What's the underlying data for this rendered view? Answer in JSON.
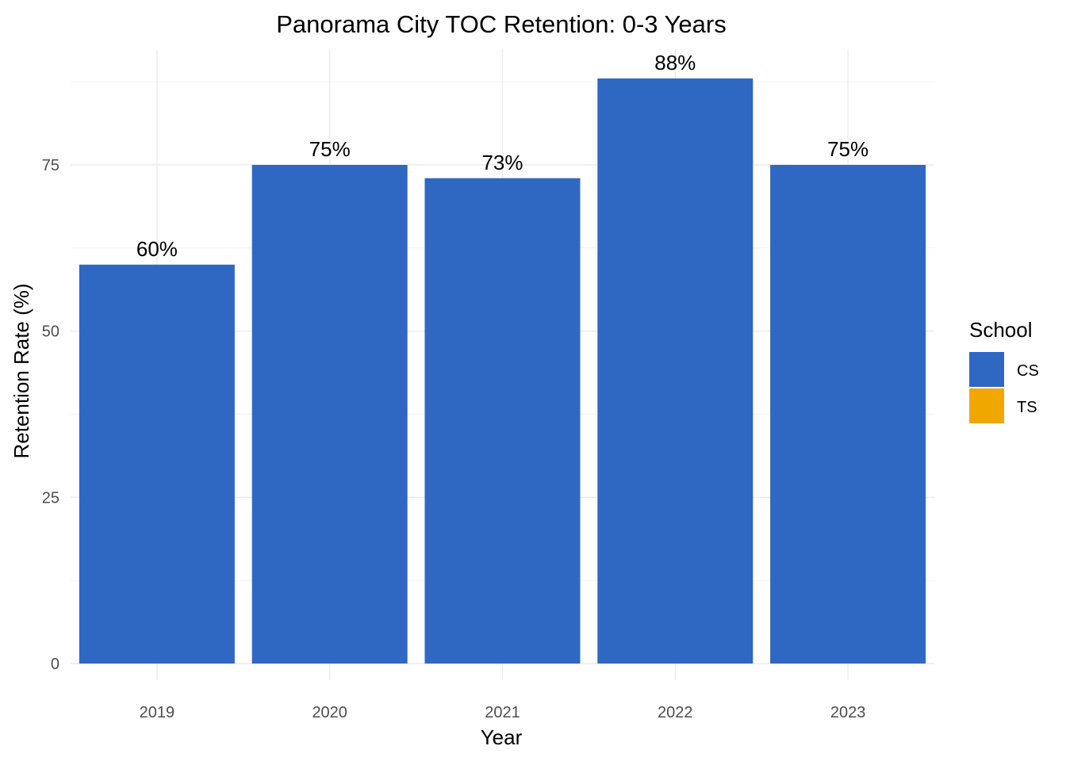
{
  "chart_data": {
    "type": "bar",
    "title": "Panorama City TOC Retention: 0-3 Years",
    "xlabel": "Year",
    "ylabel": "Retention Rate (%)",
    "categories": [
      "2019",
      "2020",
      "2021",
      "2022",
      "2023"
    ],
    "series": [
      {
        "name": "CS",
        "color": "#2E68C3",
        "values": [
          60,
          75,
          73,
          88,
          75
        ],
        "labels": [
          "60%",
          "75%",
          "73%",
          "88%",
          "75%"
        ]
      }
    ],
    "ylim": [
      0,
      90
    ],
    "yticks": [
      0,
      25,
      50,
      75
    ],
    "grid": true,
    "legend": {
      "title": "School",
      "position": "right",
      "entries": [
        {
          "label": "CS",
          "color": "#2E68C3"
        },
        {
          "label": "TS",
          "color": "#F0A800"
        }
      ]
    }
  }
}
